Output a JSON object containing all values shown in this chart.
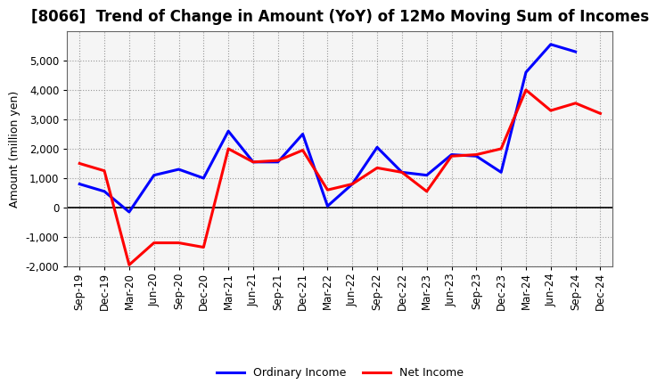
{
  "title": "[8066]  Trend of Change in Amount (YoY) of 12Mo Moving Sum of Incomes",
  "ylabel": "Amount (million yen)",
  "x_labels": [
    "Sep-19",
    "Dec-19",
    "Mar-20",
    "Jun-20",
    "Sep-20",
    "Dec-20",
    "Mar-21",
    "Jun-21",
    "Sep-21",
    "Dec-21",
    "Mar-22",
    "Jun-22",
    "Sep-22",
    "Dec-22",
    "Mar-23",
    "Jun-23",
    "Sep-23",
    "Dec-23",
    "Mar-24",
    "Jun-24",
    "Sep-24",
    "Dec-24"
  ],
  "ordinary_income": [
    800,
    550,
    -150,
    1100,
    1300,
    1000,
    2600,
    1550,
    1550,
    2500,
    50,
    800,
    2050,
    1200,
    1100,
    1800,
    1750,
    1200,
    4600,
    5550,
    5300,
    null
  ],
  "net_income": [
    1500,
    1250,
    -1950,
    -1200,
    -1200,
    -1350,
    2000,
    1550,
    1600,
    1950,
    600,
    800,
    1350,
    1200,
    550,
    1750,
    1800,
    2000,
    4000,
    3300,
    3550,
    3200
  ],
  "ordinary_income_color": "#0000ff",
  "net_income_color": "#ff0000",
  "ylim": [
    -2000,
    6000
  ],
  "yticks": [
    -2000,
    -1000,
    0,
    1000,
    2000,
    3000,
    4000,
    5000
  ],
  "legend_labels": [
    "Ordinary Income",
    "Net Income"
  ],
  "background_color": "#ffffff",
  "plot_bg_color": "#f5f5f5",
  "grid_color": "#999999",
  "line_width": 2.2,
  "title_fontsize": 12,
  "axis_fontsize": 9,
  "tick_fontsize": 8.5,
  "legend_fontsize": 9
}
